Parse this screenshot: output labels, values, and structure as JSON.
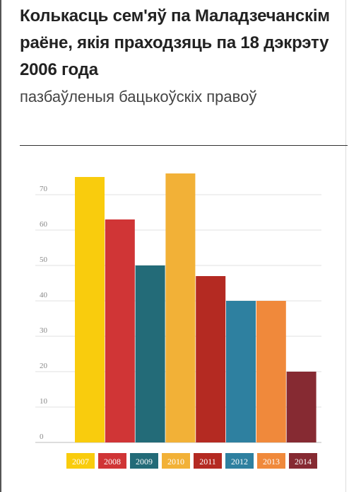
{
  "title": "Колькасць сем'яў па Маладзечанскім раёне, якія праходзяць па 18 дэкрэту 2006 года",
  "subtitle": "пазбаўленыя бацькоўскіх правоў",
  "chart_data": {
    "type": "bar",
    "categories": [
      "2007",
      "2008",
      "2009",
      "2010",
      "2011",
      "2012",
      "2013",
      "2014"
    ],
    "values": [
      75,
      63,
      50,
      76,
      47,
      40,
      40,
      20
    ],
    "colors": [
      "#f9cc0d",
      "#d03536",
      "#236b78",
      "#f2b137",
      "#b42a22",
      "#2e80a0",
      "#f0893b",
      "#862a32"
    ],
    "yticks": [
      0,
      10,
      20,
      30,
      40,
      50,
      60,
      70
    ],
    "ylim": [
      0,
      80
    ],
    "grid": true,
    "legend": "bottom"
  }
}
